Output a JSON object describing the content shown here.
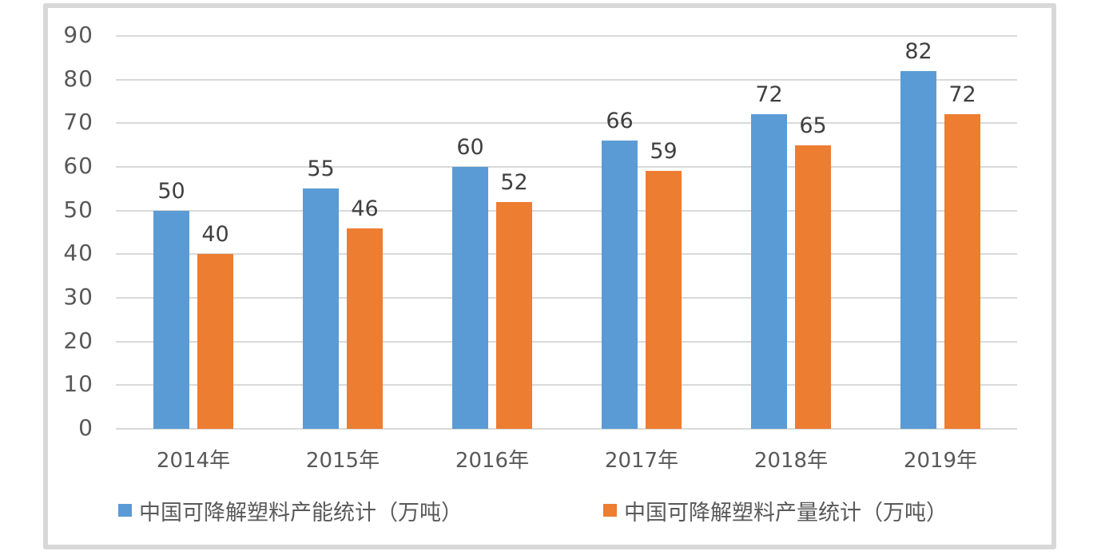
{
  "chart_data": {
    "type": "bar",
    "title": "",
    "xlabel": "",
    "ylabel": "",
    "categories": [
      "2014年",
      "2015年",
      "2016年",
      "2017年",
      "2018年",
      "2019年"
    ],
    "series": [
      {
        "name": "中国可降解塑料产能统计（万吨）",
        "color": "#5B9BD5",
        "values": [
          50,
          55,
          60,
          66,
          72,
          82
        ]
      },
      {
        "name": "中国可降解塑料产量统计（万吨）",
        "color": "#ED7D31",
        "values": [
          40,
          46,
          52,
          59,
          65,
          72
        ]
      }
    ],
    "yticks": [
      0,
      10,
      20,
      30,
      40,
      50,
      60,
      70,
      80,
      90
    ],
    "ylim": [
      0,
      90
    ],
    "grid": true,
    "data_labels": true,
    "legend_position": "bottom"
  },
  "colors": {
    "background": "#FFFFFF",
    "frame_border": "#D8D8D8",
    "grid": "#D9D9D9",
    "axis_text": "#595959",
    "data_label_text": "#404040",
    "legend_text": "#595959"
  }
}
